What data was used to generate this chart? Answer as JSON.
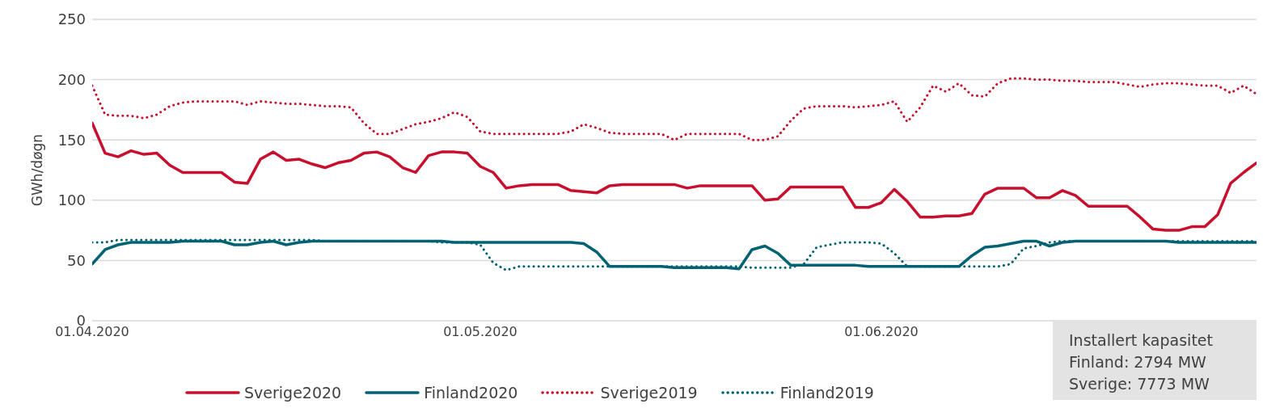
{
  "chart_data": {
    "type": "line",
    "ylabel": "GWh/døgn",
    "ylim": [
      0,
      250
    ],
    "yticks": [
      0,
      50,
      100,
      150,
      200,
      250
    ],
    "xlim": [
      "2020-04-01",
      "2020-06-30"
    ],
    "xticks": [
      {
        "value": "2020-04-01",
        "label": "01.04.2020"
      },
      {
        "value": "2020-05-01",
        "label": "01.05.2020"
      },
      {
        "value": "2020-06-01",
        "label": "01.06.2020"
      }
    ],
    "grid": "y",
    "legend": "bottom",
    "marker": "none",
    "annotations": [
      "Installert kapasitet",
      "Finland: 2794 MW",
      "Sverige: 7773 MW"
    ],
    "x": [
      "2020-04-01",
      "2020-04-02",
      "2020-04-03",
      "2020-04-04",
      "2020-04-05",
      "2020-04-06",
      "2020-04-07",
      "2020-04-08",
      "2020-04-09",
      "2020-04-10",
      "2020-04-11",
      "2020-04-12",
      "2020-04-13",
      "2020-04-14",
      "2020-04-15",
      "2020-04-16",
      "2020-04-17",
      "2020-04-18",
      "2020-04-19",
      "2020-04-20",
      "2020-04-21",
      "2020-04-22",
      "2020-04-23",
      "2020-04-24",
      "2020-04-25",
      "2020-04-26",
      "2020-04-27",
      "2020-04-28",
      "2020-04-29",
      "2020-04-30",
      "2020-05-01",
      "2020-05-02",
      "2020-05-03",
      "2020-05-04",
      "2020-05-05",
      "2020-05-06",
      "2020-05-07",
      "2020-05-08",
      "2020-05-09",
      "2020-05-10",
      "2020-05-11",
      "2020-05-12",
      "2020-05-13",
      "2020-05-14",
      "2020-05-15",
      "2020-05-16",
      "2020-05-17",
      "2020-05-18",
      "2020-05-19",
      "2020-05-20",
      "2020-05-21",
      "2020-05-22",
      "2020-05-23",
      "2020-05-24",
      "2020-05-25",
      "2020-05-26",
      "2020-05-27",
      "2020-05-28",
      "2020-05-29",
      "2020-05-30",
      "2020-05-31",
      "2020-06-01",
      "2020-06-02",
      "2020-06-03",
      "2020-06-04",
      "2020-06-05",
      "2020-06-06",
      "2020-06-07",
      "2020-06-08",
      "2020-06-09",
      "2020-06-10",
      "2020-06-11",
      "2020-06-12",
      "2020-06-13",
      "2020-06-14",
      "2020-06-15",
      "2020-06-16",
      "2020-06-17",
      "2020-06-18",
      "2020-06-19",
      "2020-06-20",
      "2020-06-21",
      "2020-06-22",
      "2020-06-23",
      "2020-06-24",
      "2020-06-25",
      "2020-06-26",
      "2020-06-27",
      "2020-06-28",
      "2020-06-29",
      "2020-06-30"
    ],
    "series": [
      {
        "name": "Sverige2020",
        "color": "#c8102e",
        "line_style": "solid",
        "values": [
          164,
          139,
          136,
          141,
          138,
          139,
          129,
          123,
          123,
          123,
          123,
          115,
          114,
          134,
          140,
          133,
          134,
          130,
          127,
          131,
          133,
          139,
          140,
          136,
          127,
          123,
          137,
          140,
          140,
          139,
          128,
          123,
          110,
          112,
          113,
          113,
          113,
          108,
          107,
          106,
          112,
          113,
          113,
          113,
          113,
          113,
          110,
          112,
          112,
          112,
          112,
          112,
          100,
          101,
          111,
          111,
          111,
          111,
          111,
          94,
          94,
          98,
          109,
          99,
          86,
          86,
          87,
          87,
          89,
          105,
          110,
          110,
          110,
          102,
          102,
          108,
          104,
          95,
          95,
          95,
          95,
          86,
          76,
          75,
          75,
          78,
          78,
          88,
          114,
          123,
          131
        ]
      },
      {
        "name": "Finland2020",
        "color": "#006272",
        "line_style": "solid",
        "values": [
          47,
          59,
          63,
          65,
          65,
          65,
          65,
          66,
          66,
          66,
          66,
          63,
          63,
          65,
          66,
          63,
          65,
          66,
          66,
          66,
          66,
          66,
          66,
          66,
          66,
          66,
          66,
          66,
          65,
          65,
          65,
          65,
          65,
          65,
          65,
          65,
          65,
          65,
          64,
          57,
          45,
          45,
          45,
          45,
          45,
          44,
          44,
          44,
          44,
          44,
          43,
          59,
          62,
          56,
          46,
          46,
          46,
          46,
          46,
          46,
          45,
          45,
          45,
          45,
          45,
          45,
          45,
          45,
          54,
          61,
          62,
          64,
          66,
          66,
          62,
          65,
          66,
          66,
          66,
          66,
          66,
          66,
          66,
          66,
          65,
          65,
          65,
          65,
          65,
          65,
          65
        ]
      },
      {
        "name": "Sverige2019",
        "color": "#c8102e",
        "line_style": "dotted",
        "values": [
          195,
          171,
          170,
          170,
          168,
          171,
          178,
          181,
          182,
          182,
          182,
          182,
          179,
          182,
          181,
          180,
          180,
          179,
          178,
          178,
          177,
          164,
          155,
          155,
          159,
          163,
          165,
          168,
          173,
          169,
          157,
          155,
          155,
          155,
          155,
          155,
          155,
          157,
          163,
          160,
          156,
          155,
          155,
          155,
          155,
          150,
          155,
          155,
          155,
          155,
          155,
          150,
          150,
          153,
          166,
          176,
          178,
          178,
          178,
          177,
          178,
          179,
          182,
          165,
          177,
          195,
          190,
          197,
          187,
          186,
          197,
          201,
          201,
          200,
          200,
          199,
          199,
          198,
          198,
          198,
          196,
          194,
          196,
          197,
          197,
          196,
          195,
          195,
          189,
          195,
          188
        ]
      },
      {
        "name": "Finland2019",
        "color": "#006272",
        "line_style": "dotted",
        "values": [
          65,
          65,
          67,
          67,
          67,
          67,
          67,
          67,
          67,
          67,
          67,
          67,
          67,
          67,
          67,
          67,
          67,
          67,
          66,
          66,
          66,
          66,
          66,
          66,
          66,
          66,
          66,
          65,
          65,
          65,
          63,
          48,
          42,
          45,
          45,
          45,
          45,
          45,
          45,
          45,
          45,
          45,
          45,
          45,
          45,
          45,
          45,
          45,
          45,
          45,
          45,
          44,
          44,
          44,
          44,
          47,
          61,
          63,
          65,
          65,
          65,
          64,
          56,
          45,
          45,
          45,
          45,
          45,
          45,
          45,
          45,
          47,
          60,
          62,
          65,
          66,
          66,
          66,
          66,
          66,
          66,
          66,
          66,
          66,
          66,
          66,
          66,
          66,
          66,
          66,
          66
        ]
      }
    ]
  }
}
